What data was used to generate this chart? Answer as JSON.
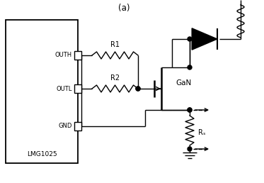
{
  "title": "(a)",
  "ic_label": "LMG1025",
  "pin_labels": [
    "OUTH",
    "OUTL",
    "GND"
  ],
  "resistor_labels": [
    "R1",
    "R2"
  ],
  "gan_label": "GaN",
  "rs_label": "Rₛ",
  "bg_color": "#ffffff",
  "line_color": "#000000",
  "figsize": [
    3.73,
    2.58
  ],
  "dpi": 100
}
